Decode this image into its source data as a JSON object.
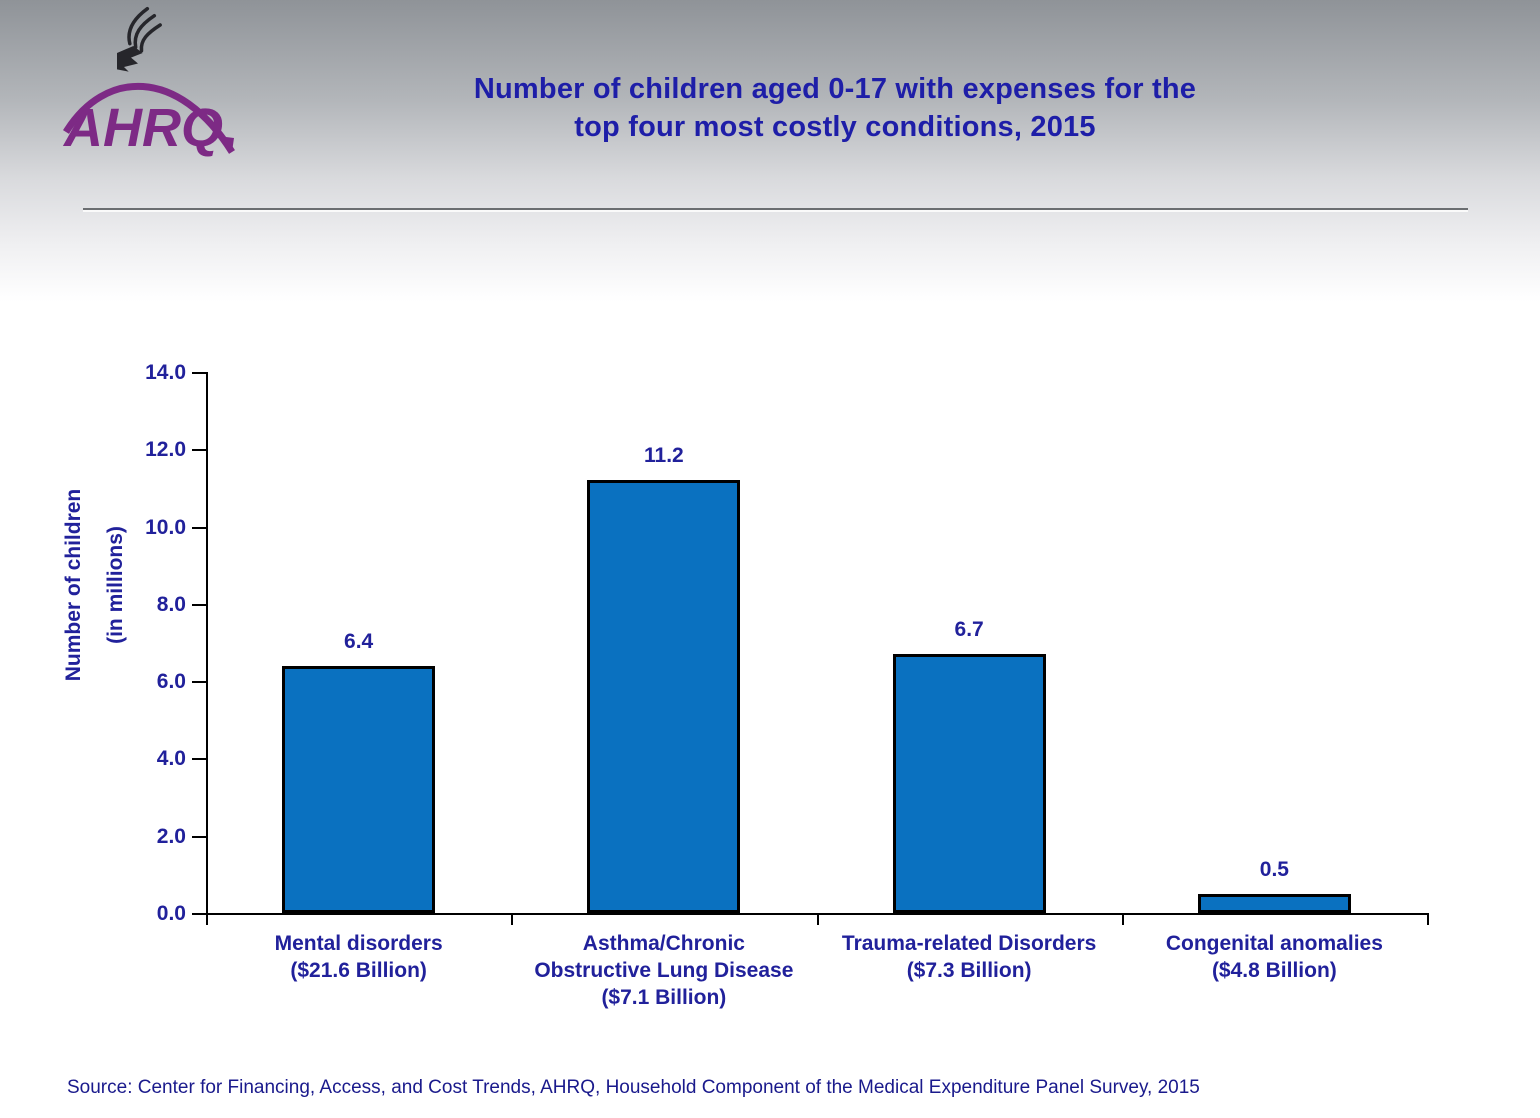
{
  "header": {
    "title_line1": "Number of children aged 0-17 with expenses for the",
    "title_line2": "top four most costly conditions, 2015",
    "logo_text": "AHRQ"
  },
  "chart_data": {
    "type": "bar",
    "title": "Number of children aged 0-17 with expenses for the top four most costly conditions, 2015",
    "categories": [
      "Mental disorders ($21.6 Billion)",
      "Asthma/Chronic Obstructive Lung Disease ($7.1 Billion)",
      "Trauma-related Disorders ($7.3 Billion)",
      "Congenital anomalies ($4.8 Billion)"
    ],
    "category_lines": [
      [
        "Mental disorders",
        "($21.6 Billion)"
      ],
      [
        "Asthma/Chronic",
        "Obstructive Lung Disease",
        "($7.1 Billion)"
      ],
      [
        "Trauma-related Disorders",
        "($7.3 Billion)"
      ],
      [
        "Congenital anomalies",
        "($4.8 Billion)"
      ]
    ],
    "values": [
      6.4,
      11.2,
      6.7,
      0.5
    ],
    "data_labels": [
      "6.4",
      "11.2",
      "6.7",
      "0.5"
    ],
    "xlabel": "",
    "ylabel_lines": [
      "Number of children",
      "(in millions)"
    ],
    "ytick_labels": [
      "0.0",
      "2.0",
      "4.0",
      "6.0",
      "8.0",
      "10.0",
      "12.0",
      "14.0"
    ],
    "ylim": [
      0,
      14
    ],
    "ytick_step": 2,
    "grid": false,
    "legend_position": "none",
    "bar_fill": "#0a71c0",
    "bar_border": "#000000"
  },
  "colors": {
    "title_text": "#1e1ea8",
    "axis_text": "#21219b",
    "source_text": "#1a1a8c",
    "logo_purple": "#7d2a85",
    "eagle_dark": "#26262b"
  },
  "footer": {
    "source": "Source: Center for Financing, Access, and Cost Trends, AHRQ, Household Component of the Medical Expenditure Panel Survey, 2015"
  }
}
